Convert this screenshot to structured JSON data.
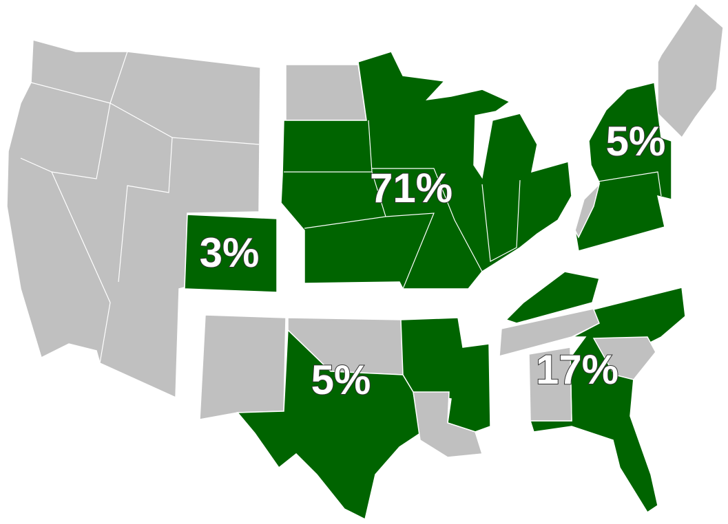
{
  "regions": [
    {
      "label": "3%"
    },
    {
      "label": "71%"
    },
    {
      "label": "5%"
    },
    {
      "label": "5%"
    },
    {
      "label": "17%"
    }
  ]
}
